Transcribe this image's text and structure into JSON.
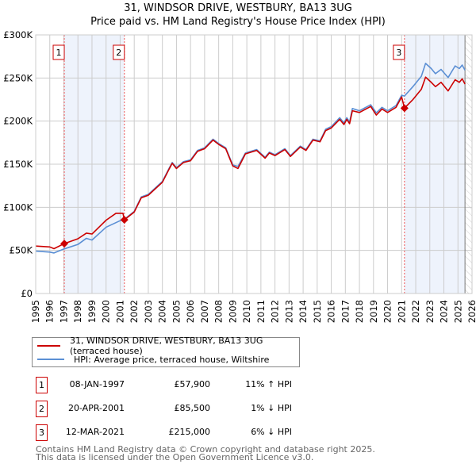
{
  "title": "31, WINDSOR DRIVE, WESTBURY, BA13 3UG",
  "subtitle": "Price paid vs. HM Land Registry's House Price Index (HPI)",
  "colors": {
    "property": "#cc0000",
    "hpi": "#5b8fd4",
    "shade": "#eef3fc"
  },
  "chart_data": {
    "type": "line",
    "title": "31, WINDSOR DRIVE, WESTBURY, BA13 3UG",
    "subtitle": "Price paid vs. HM Land Registry's House Price Index (HPI)",
    "xlim": [
      1995,
      2026
    ],
    "ylim": [
      0,
      300000
    ],
    "y_ticks": [
      0,
      50000,
      100000,
      150000,
      200000,
      250000,
      300000
    ],
    "y_tick_labels": [
      "£0",
      "£50K",
      "£100K",
      "£150K",
      "£200K",
      "£250K",
      "£300K"
    ],
    "x_ticks": [
      "1995",
      "1996",
      "1997",
      "1998",
      "1999",
      "2000",
      "2001",
      "2002",
      "2003",
      "2004",
      "2005",
      "2006",
      "2007",
      "2008",
      "2009",
      "2010",
      "2011",
      "2012",
      "2013",
      "2014",
      "2015",
      "2016",
      "2017",
      "2018",
      "2019",
      "2020",
      "2021",
      "2022",
      "2023",
      "2024",
      "2025",
      "2026"
    ],
    "grid": true,
    "series": [
      {
        "name": "31, WINDSOR DRIVE, WESTBURY, BA13 3UG (terraced house)",
        "color": "#cc0000",
        "x": [
          1995,
          1996,
          1996.3,
          1997.03,
          1998,
          1998.6,
          1999,
          2000,
          2000.7,
          2001.2,
          2001.3,
          2002,
          2002.5,
          2003,
          2004,
          2004.5,
          2004.7,
          2005,
          2005.5,
          2006,
          2006.5,
          2007,
          2007.6,
          2008,
          2008.5,
          2009,
          2009.37,
          2009.9,
          2010.7,
          2011.3,
          2011.6,
          2012,
          2012.7,
          2013.1,
          2013.8,
          2014.2,
          2014.7,
          2015.2,
          2015.6,
          2016,
          2016.6,
          2016.9,
          2017.1,
          2017.3,
          2017.5,
          2018,
          2018.8,
          2019.2,
          2019.6,
          2020,
          2020.6,
          2021.0,
          2021.2,
          2021.8,
          2022.4,
          2022.7,
          2023.1,
          2023.4,
          2023.8,
          2024.3,
          2024.8,
          2025.1,
          2025.3,
          2025.5
        ],
        "y": [
          55000,
          54000,
          52000,
          57900,
          63500,
          70000,
          69000,
          85000,
          93000,
          93000,
          85500,
          94500,
          111000,
          114000,
          129000,
          145000,
          151000,
          145000,
          152000,
          154000,
          165000,
          168000,
          178000,
          173000,
          168000,
          148000,
          145000,
          162000,
          166000,
          157000,
          163000,
          160000,
          167000,
          159000,
          170000,
          166000,
          178000,
          176000,
          189000,
          192000,
          202000,
          196000,
          202000,
          197000,
          212000,
          210000,
          217000,
          207000,
          214000,
          210000,
          216000,
          228000,
          215000,
          225000,
          237000,
          251000,
          245000,
          240000,
          245000,
          235000,
          248000,
          245000,
          249000,
          243000
        ]
      },
      {
        "name": "HPI: Average price, terraced house, Wiltshire",
        "color": "#5b8fd4",
        "x": [
          1995,
          1996,
          1996.3,
          1997,
          1998,
          1998.6,
          1999,
          2000,
          2001,
          2001.3,
          2002,
          2002.5,
          2003,
          2004,
          2004.5,
          2004.7,
          2005,
          2005.5,
          2006,
          2006.5,
          2007,
          2007.6,
          2008,
          2008.5,
          2009,
          2009.37,
          2009.9,
          2010.7,
          2011.3,
          2011.6,
          2012,
          2012.7,
          2013.1,
          2013.8,
          2014.2,
          2014.7,
          2015.2,
          2015.6,
          2016,
          2016.6,
          2016.9,
          2017.1,
          2017.3,
          2017.5,
          2018,
          2018.8,
          2019.2,
          2019.6,
          2020,
          2020.6,
          2021.0,
          2021.2,
          2021.8,
          2022.4,
          2022.7,
          2023.1,
          2023.4,
          2023.8,
          2024.3,
          2024.8,
          2025.1,
          2025.3,
          2025.5
        ],
        "y": [
          49200,
          48000,
          47000,
          51600,
          56900,
          64000,
          62000,
          76900,
          84500,
          86000,
          95300,
          112000,
          115000,
          130000,
          146000,
          152000,
          146000,
          153000,
          155000,
          166000,
          169000,
          179000,
          174000,
          169000,
          149000,
          147500,
          163000,
          167000,
          158000,
          164000,
          161000,
          168000,
          160000,
          171000,
          167000,
          179000,
          177000,
          190600,
          193600,
          204000,
          198000,
          204000,
          199000,
          214600,
          212000,
          219000,
          209600,
          216000,
          212000,
          218000,
          230000,
          229000,
          240000,
          252000,
          267000,
          261000,
          255000,
          260000,
          250500,
          264000,
          261000,
          265000,
          259000
        ]
      }
    ],
    "annotations": [
      {
        "label": "1",
        "x": 1997.03,
        "y": 57900
      },
      {
        "label": "2",
        "x": 2001.3,
        "y": 85500
      },
      {
        "label": "3",
        "x": 2021.2,
        "y": 215000
      }
    ],
    "shaded_ranges": [
      [
        1997.03,
        2001.3
      ],
      [
        2021.2,
        2025.5
      ]
    ],
    "legend_position": "below"
  },
  "legend": [
    {
      "label": "31, WINDSOR DRIVE, WESTBURY, BA13 3UG (terraced house)"
    },
    {
      "label": "HPI: Average price, terraced house, Wiltshire"
    }
  ],
  "transactions": [
    {
      "num": "1",
      "date": "08-JAN-1997",
      "price": "£57,900",
      "hpi": "11% ↑ HPI"
    },
    {
      "num": "2",
      "date": "20-APR-2001",
      "price": "£85,500",
      "hpi": "1% ↓ HPI"
    },
    {
      "num": "3",
      "date": "12-MAR-2021",
      "price": "£215,000",
      "hpi": "6% ↓ HPI"
    }
  ],
  "footer": {
    "line1": "Contains HM Land Registry data © Crown copyright and database right 2025.",
    "line2": "This data is licensed under the Open Government Licence v3.0."
  }
}
